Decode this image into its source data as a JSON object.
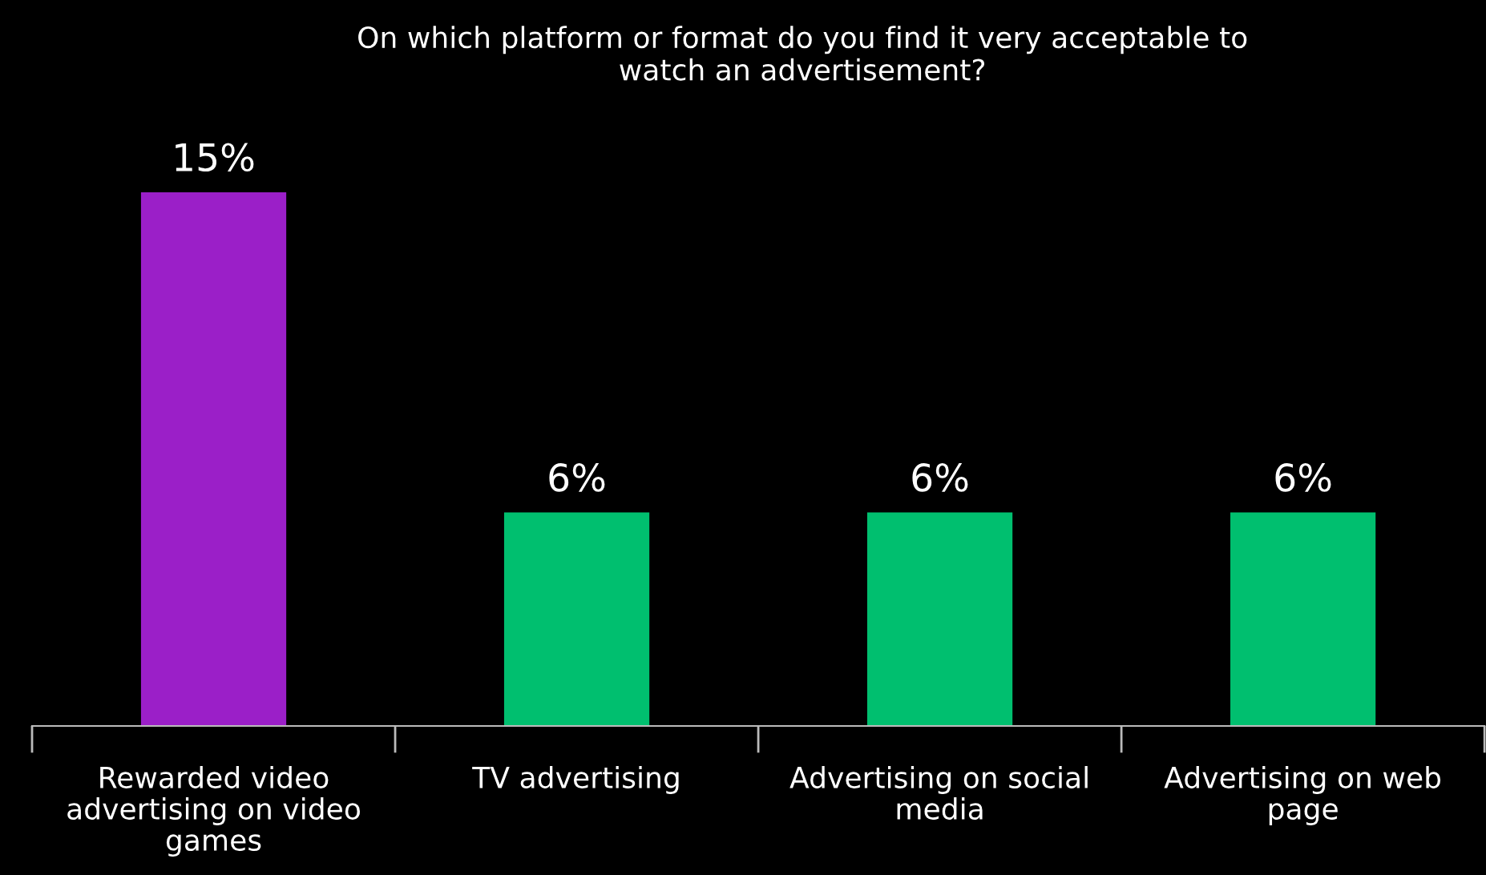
{
  "chart_data": {
    "type": "bar",
    "title": "On which platform or format do you find it very acceptable to watch an advertisement?",
    "categories": [
      "Rewarded video advertising on video games",
      "TV advertising",
      "Advertising on social media",
      "Advertising on web page"
    ],
    "values": [
      15,
      6,
      6,
      6
    ],
    "colors": [
      "#9b1fc8",
      "#00bf6f",
      "#00bf6f",
      "#00bf6f"
    ],
    "value_labels": [
      "15%",
      "6%",
      "6%",
      "6%"
    ],
    "grid": false,
    "legend": false
  }
}
